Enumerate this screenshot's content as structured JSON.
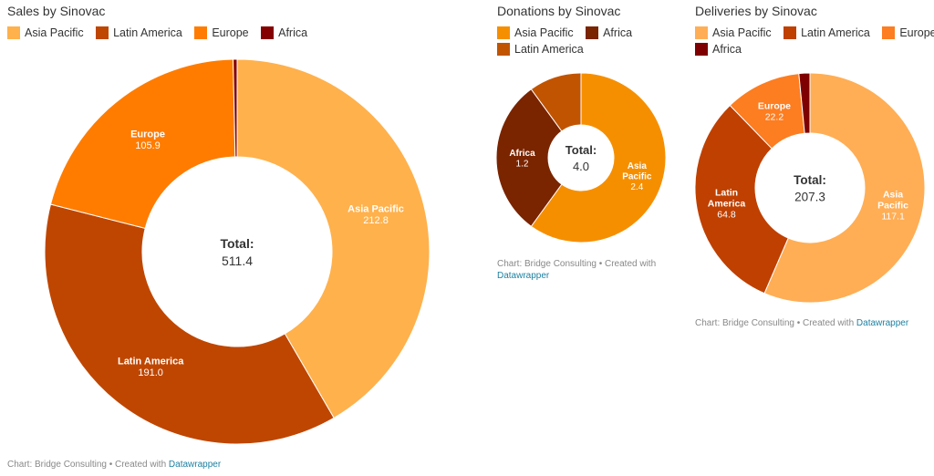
{
  "chart_data": [
    {
      "type": "pie",
      "title": "Sales by Sinovac",
      "categories": [
        "Asia Pacific",
        "Latin America",
        "Europe",
        "Africa"
      ],
      "values": [
        212.8,
        191.0,
        105.9,
        1.7
      ],
      "slice_labels": [
        "Asia Pacific|212.8",
        "Latin America|191.0",
        "Europe|105.9",
        ""
      ],
      "colors": [
        "#ffb14c",
        "#bf4600",
        "#ff7c00",
        "#850000"
      ],
      "total_label": "Total:",
      "total_value": "511.4",
      "footer_text": "Chart: Bridge Consulting • Created with",
      "footer_link": "Datawrapper"
    },
    {
      "type": "pie",
      "title": "Donations by Sinovac",
      "categories": [
        "Asia Pacific",
        "Africa",
        "Latin America"
      ],
      "values": [
        2.4,
        1.2,
        0.4
      ],
      "slice_labels": [
        "Asia|Pacific|2.4",
        "Africa|1.2",
        ""
      ],
      "colors": [
        "#f68f00",
        "#7a2400",
        "#c15400"
      ],
      "total_label": "Total:",
      "total_value": "4.0",
      "footer_text": "Chart: Bridge Consulting • Created with",
      "footer_link": "Datawrapper"
    },
    {
      "type": "pie",
      "title": "Deliveries by Sinovac",
      "categories": [
        "Asia Pacific",
        "Latin America",
        "Europe",
        "Africa"
      ],
      "values": [
        117.1,
        64.8,
        22.2,
        3.2
      ],
      "slice_labels": [
        "Asia|Pacific|117.1",
        "Latin|America|64.8",
        "Europe|22.2",
        ""
      ],
      "colors": [
        "#ffae55",
        "#bf4000",
        "#fd7d21",
        "#7f0000"
      ],
      "total_label": "Total:",
      "total_value": "207.3",
      "footer_text": "Chart: Bridge Consulting • Created with",
      "footer_link": "Datawrapper"
    }
  ]
}
